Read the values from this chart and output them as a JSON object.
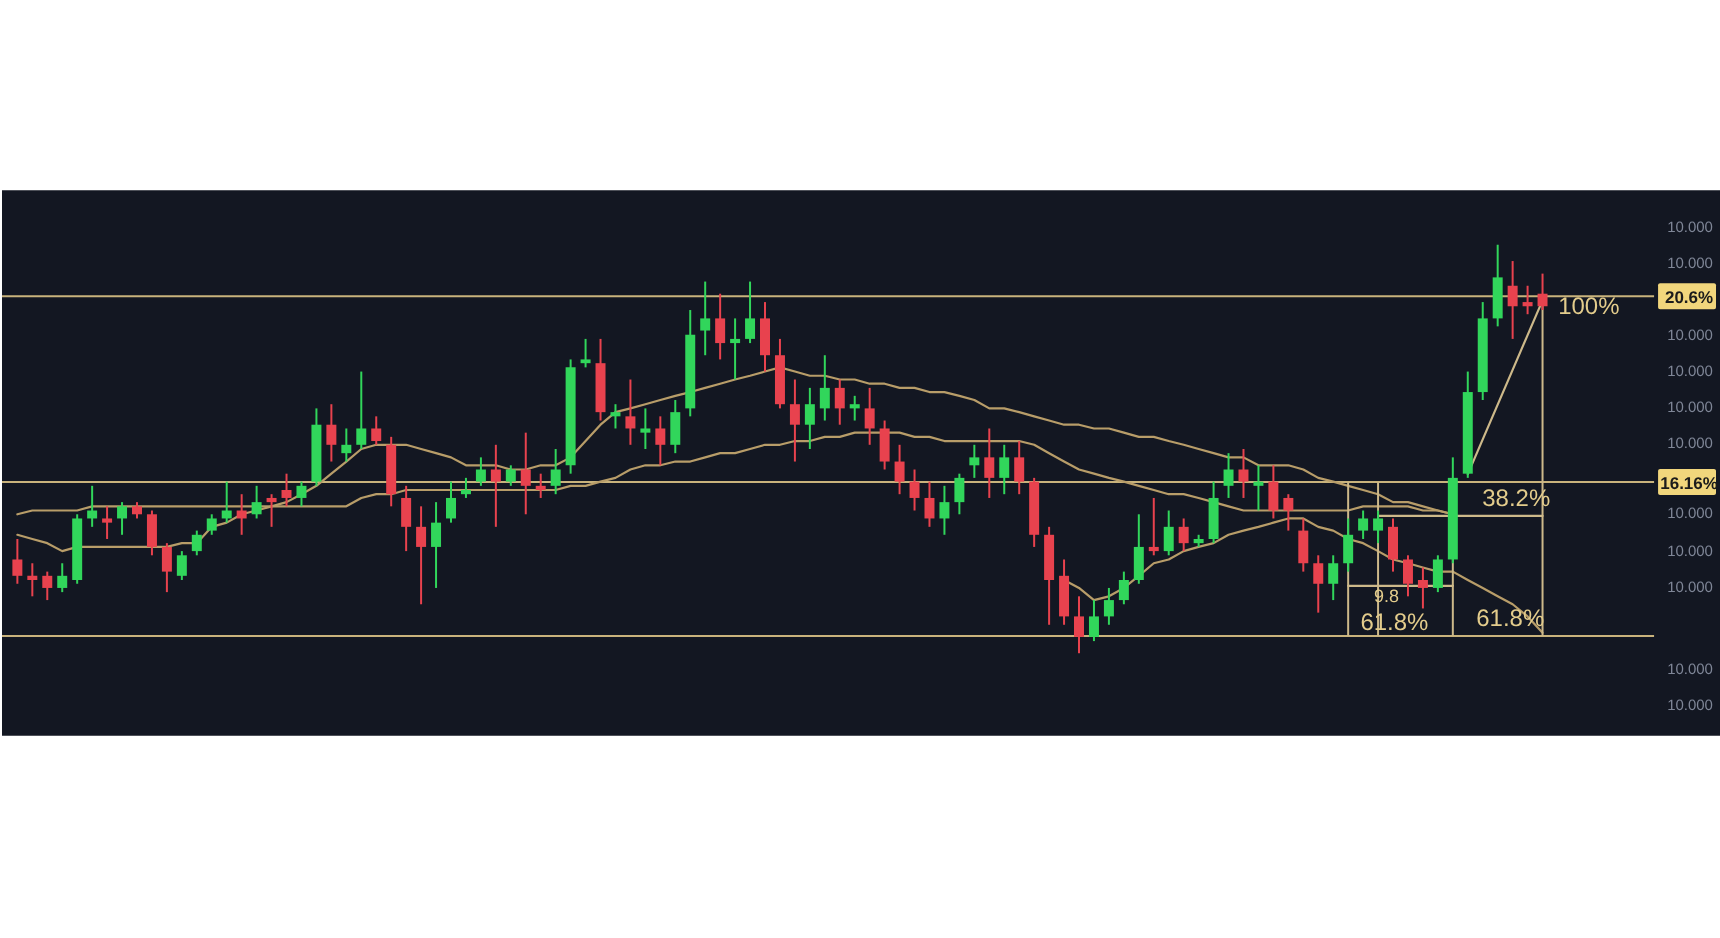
{
  "chart_data": {
    "type": "candlestick",
    "categories": [
      null,
      null,
      null,
      null,
      null,
      null,
      null,
      null,
      null,
      null,
      null,
      null,
      null,
      null,
      null,
      null,
      null,
      null,
      null,
      null,
      null,
      null,
      null,
      null,
      null,
      null,
      null,
      null,
      null,
      null,
      null,
      null,
      null,
      null,
      null,
      null,
      null,
      null,
      null,
      null,
      null,
      null,
      null,
      null,
      null,
      null,
      null,
      null,
      null,
      null,
      null,
      null,
      null,
      null,
      null,
      null,
      null,
      null,
      null,
      null,
      null,
      null,
      null,
      null,
      null,
      null,
      null,
      null,
      null,
      null,
      null,
      null,
      null,
      null,
      null,
      null,
      null,
      null,
      null,
      null,
      null,
      null,
      null,
      null,
      null,
      null,
      null,
      null,
      null,
      null,
      null,
      null,
      null,
      null,
      null,
      null,
      null,
      null,
      null,
      null,
      null,
      null,
      null
    ],
    "ohlc": [
      [
        14.31,
        14.8,
        13.73,
        13.92
      ],
      [
        13.92,
        14.22,
        13.43,
        13.82
      ],
      [
        13.92,
        14.02,
        13.34,
        13.63
      ],
      [
        13.63,
        14.22,
        13.53,
        13.92
      ],
      [
        13.82,
        15.39,
        13.73,
        15.29
      ],
      [
        15.29,
        16.07,
        15.09,
        15.48
      ],
      [
        15.29,
        15.58,
        14.8,
        15.19
      ],
      [
        15.29,
        15.68,
        14.9,
        15.58
      ],
      [
        15.58,
        15.68,
        15.29,
        15.39
      ],
      [
        15.39,
        15.48,
        14.41,
        14.61
      ],
      [
        14.61,
        14.7,
        13.53,
        14.02
      ],
      [
        13.92,
        14.51,
        13.82,
        14.41
      ],
      [
        14.51,
        15.0,
        14.41,
        14.9
      ],
      [
        15.0,
        15.39,
        14.9,
        15.29
      ],
      [
        15.29,
        16.17,
        15.19,
        15.48
      ],
      [
        15.48,
        15.87,
        14.9,
        15.29
      ],
      [
        15.39,
        16.07,
        15.29,
        15.68
      ],
      [
        15.78,
        15.87,
        15.09,
        15.68
      ],
      [
        15.97,
        16.36,
        15.58,
        15.78
      ],
      [
        15.78,
        16.17,
        15.58,
        16.07
      ],
      [
        16.17,
        17.92,
        16.07,
        17.53
      ],
      [
        17.53,
        18.02,
        16.65,
        17.05
      ],
      [
        16.85,
        17.44,
        16.65,
        17.05
      ],
      [
        17.05,
        18.8,
        16.95,
        17.44
      ],
      [
        17.44,
        17.73,
        17.05,
        17.14
      ],
      [
        17.05,
        17.24,
        15.58,
        15.87
      ],
      [
        15.78,
        16.07,
        14.51,
        15.09
      ],
      [
        15.09,
        15.58,
        13.24,
        14.61
      ],
      [
        14.61,
        15.68,
        13.63,
        15.19
      ],
      [
        15.29,
        16.17,
        15.19,
        15.78
      ],
      [
        15.87,
        16.26,
        15.78,
        15.97
      ],
      [
        16.17,
        16.75,
        16.07,
        16.46
      ],
      [
        16.46,
        17.05,
        15.09,
        16.17
      ],
      [
        16.17,
        16.56,
        16.07,
        16.46
      ],
      [
        16.46,
        17.34,
        15.39,
        16.07
      ],
      [
        16.07,
        16.36,
        15.78,
        15.97
      ],
      [
        16.07,
        16.95,
        15.87,
        16.46
      ],
      [
        16.56,
        19.09,
        16.36,
        18.9
      ],
      [
        19.0,
        19.58,
        18.9,
        19.09
      ],
      [
        19.0,
        19.58,
        17.63,
        17.83
      ],
      [
        17.73,
        18.02,
        17.44,
        17.83
      ],
      [
        17.73,
        18.61,
        17.05,
        17.44
      ],
      [
        17.34,
        17.92,
        16.95,
        17.44
      ],
      [
        17.44,
        17.73,
        16.56,
        17.05
      ],
      [
        17.05,
        18.12,
        16.85,
        17.83
      ],
      [
        17.92,
        20.27,
        17.73,
        19.68
      ],
      [
        19.78,
        20.95,
        19.19,
        20.07
      ],
      [
        20.07,
        20.66,
        19.09,
        19.48
      ],
      [
        19.48,
        20.07,
        18.61,
        19.58
      ],
      [
        19.58,
        20.95,
        19.48,
        20.07
      ],
      [
        20.07,
        20.46,
        18.8,
        19.19
      ],
      [
        19.19,
        19.58,
        17.92,
        18.02
      ],
      [
        18.02,
        18.61,
        16.65,
        17.53
      ],
      [
        17.53,
        18.41,
        16.95,
        18.02
      ],
      [
        17.92,
        19.19,
        17.63,
        18.41
      ],
      [
        18.41,
        18.61,
        17.53,
        17.92
      ],
      [
        17.92,
        18.22,
        17.63,
        18.02
      ],
      [
        17.92,
        18.41,
        17.05,
        17.44
      ],
      [
        17.44,
        17.63,
        16.46,
        16.65
      ],
      [
        16.65,
        17.05,
        15.87,
        16.17
      ],
      [
        16.17,
        16.46,
        15.48,
        15.78
      ],
      [
        15.78,
        16.17,
        15.09,
        15.29
      ],
      [
        15.29,
        16.07,
        14.9,
        15.68
      ],
      [
        15.68,
        16.36,
        15.39,
        16.26
      ],
      [
        16.56,
        17.05,
        16.26,
        16.75
      ],
      [
        16.75,
        17.44,
        15.78,
        16.26
      ],
      [
        16.26,
        17.05,
        15.87,
        16.75
      ],
      [
        16.75,
        17.14,
        15.87,
        16.17
      ],
      [
        16.17,
        16.26,
        14.61,
        14.9
      ],
      [
        14.9,
        15.09,
        12.75,
        13.82
      ],
      [
        13.92,
        14.31,
        12.75,
        12.95
      ],
      [
        12.95,
        13.43,
        12.07,
        12.46
      ],
      [
        12.46,
        13.34,
        12.36,
        12.95
      ],
      [
        12.95,
        13.63,
        12.75,
        13.34
      ],
      [
        13.34,
        14.02,
        13.24,
        13.82
      ],
      [
        13.82,
        15.39,
        13.73,
        14.61
      ],
      [
        14.61,
        15.78,
        14.41,
        14.51
      ],
      [
        14.51,
        15.48,
        14.41,
        15.09
      ],
      [
        15.09,
        15.29,
        14.51,
        14.7
      ],
      [
        14.7,
        14.9,
        14.61,
        14.8
      ],
      [
        14.8,
        16.17,
        14.7,
        15.78
      ],
      [
        16.07,
        16.85,
        15.78,
        16.46
      ],
      [
        16.46,
        16.95,
        15.78,
        16.17
      ],
      [
        16.07,
        16.56,
        15.48,
        16.17
      ],
      [
        16.17,
        16.56,
        15.29,
        15.48
      ],
      [
        15.78,
        15.87,
        15.0,
        15.48
      ],
      [
        15.0,
        15.29,
        14.02,
        14.22
      ],
      [
        14.22,
        14.41,
        13.04,
        13.73
      ],
      [
        13.73,
        14.41,
        13.34,
        14.22
      ],
      [
        14.22,
        15.29,
        14.02,
        14.9
      ],
      [
        15.0,
        15.48,
        14.8,
        15.29
      ],
      [
        15.0,
        15.48,
        14.7,
        15.29
      ],
      [
        15.09,
        15.29,
        14.02,
        14.31
      ],
      [
        14.31,
        14.41,
        13.43,
        13.73
      ],
      [
        13.82,
        14.12,
        13.14,
        13.63
      ],
      [
        13.63,
        14.41,
        13.53,
        14.31
      ],
      [
        14.31,
        16.75,
        14.22,
        16.26
      ],
      [
        16.36,
        18.8,
        16.26,
        18.31
      ],
      [
        18.31,
        20.46,
        18.12,
        20.07
      ],
      [
        20.07,
        21.83,
        19.88,
        21.05
      ],
      [
        20.85,
        21.44,
        19.58,
        20.36
      ],
      [
        20.46,
        20.85,
        20.17,
        20.36
      ],
      [
        20.66,
        21.14,
        20.27,
        20.36
      ]
    ],
    "colors": [
      "#e8424e",
      "#e8424e",
      "#e8424e",
      "#31d65b",
      "#31d65b",
      "#31d65b",
      "#e8424e",
      "#31d65b",
      "#e8424e",
      "#e8424e",
      "#e8424e",
      "#31d65b",
      "#31d65b",
      "#31d65b",
      "#31d65b",
      "#e8424e",
      "#31d65b",
      "#e8424e",
      "#e8424e",
      "#31d65b",
      "#31d65b",
      "#e8424e",
      "#31d65b",
      "#31d65b",
      "#e8424e",
      "#e8424e",
      "#e8424e",
      "#e8424e",
      "#31d65b",
      "#31d65b",
      "#31d65b",
      "#31d65b",
      "#e8424e",
      "#31d65b",
      "#e8424e",
      "#e8424e",
      "#31d65b",
      "#31d65b",
      "#31d65b",
      "#e8424e",
      "#31d65b",
      "#e8424e",
      "#31d65b",
      "#e8424e",
      "#31d65b",
      "#31d65b",
      "#31d65b",
      "#e8424e",
      "#31d65b",
      "#31d65b",
      "#e8424e",
      "#e8424e",
      "#e8424e",
      "#31d65b",
      "#31d65b",
      "#e8424e",
      "#31d65b",
      "#e8424e",
      "#e8424e",
      "#e8424e",
      "#e8424e",
      "#e8424e",
      "#31d65b",
      "#31d65b",
      "#31d65b",
      "#e8424e",
      "#31d65b",
      "#e8424e",
      "#e8424e",
      "#e8424e",
      "#e8424e",
      "#e8424e",
      "#31d65b",
      "#31d65b",
      "#31d65b",
      "#31d65b",
      "#e8424e",
      "#31d65b",
      "#e8424e",
      "#31d65b",
      "#31d65b",
      "#31d65b",
      "#e8424e",
      "#31d65b",
      "#e8424e",
      "#e8424e",
      "#e8424e",
      "#e8424e",
      "#31d65b",
      "#31d65b",
      "#31d65b",
      "#31d65b",
      "#e8424e",
      "#e8424e",
      "#e8424e",
      "#31d65b",
      "#31d65b",
      "#31d65b",
      "#31d65b",
      "#31d65b",
      "#e8424e",
      "#e8424e",
      "#e8424e"
    ],
    "series": [
      {
        "type": "line",
        "color": "#b89d69",
        "values": [
          14.9,
          14.8,
          14.7,
          14.51,
          14.61,
          14.61,
          14.61,
          14.61,
          14.61,
          14.61,
          14.61,
          14.7,
          14.7,
          15.09,
          15.19,
          15.39,
          15.48,
          15.58,
          15.68,
          15.87,
          16.07,
          16.36,
          16.65,
          16.95,
          17.05,
          17.05,
          17.05,
          16.95,
          16.85,
          16.75,
          16.56,
          16.56,
          16.56,
          16.46,
          16.46,
          16.56,
          16.56,
          16.75,
          17.14,
          17.53,
          17.83,
          17.92,
          18.02,
          18.12,
          18.22,
          18.31,
          18.41,
          18.51,
          18.61,
          18.7,
          18.8,
          18.9,
          18.8,
          18.7,
          18.7,
          18.61,
          18.61,
          18.51,
          18.51,
          18.41,
          18.41,
          18.31,
          18.31,
          18.22,
          18.12,
          17.92,
          17.92,
          17.83,
          17.73,
          17.63,
          17.53,
          17.53,
          17.44,
          17.44,
          17.34,
          17.24,
          17.24,
          17.14,
          17.05,
          16.95,
          16.85,
          16.75,
          16.75,
          16.56,
          16.56,
          16.56,
          16.46,
          16.26,
          16.17,
          16.07,
          15.97,
          15.87,
          15.68,
          15.68,
          15.58,
          15.48,
          15.39,
          null,
          null,
          null,
          null,
          null,
          null
        ]
      },
      {
        "type": "line",
        "color": "#b89d69",
        "values": [
          15.39,
          15.48,
          15.48,
          15.48,
          15.48,
          15.58,
          15.58,
          15.58,
          15.58,
          15.58,
          15.58,
          15.58,
          15.58,
          15.58,
          15.58,
          15.58,
          15.58,
          15.58,
          15.58,
          15.58,
          15.58,
          15.58,
          15.58,
          15.78,
          15.87,
          15.87,
          15.97,
          15.97,
          15.97,
          15.97,
          15.97,
          15.97,
          15.97,
          15.97,
          15.97,
          15.97,
          15.97,
          16.07,
          16.07,
          16.17,
          16.26,
          16.46,
          16.56,
          16.56,
          16.65,
          16.65,
          16.75,
          16.85,
          16.85,
          16.95,
          17.05,
          17.05,
          17.14,
          17.14,
          17.24,
          17.24,
          17.34,
          17.34,
          17.34,
          17.34,
          17.24,
          17.24,
          17.14,
          17.14,
          17.14,
          17.14,
          17.14,
          17.14,
          17.05,
          16.85,
          16.65,
          16.46,
          16.36,
          16.26,
          16.17,
          16.07,
          15.97,
          15.87,
          15.87,
          15.78,
          15.68,
          15.58,
          15.48,
          15.48,
          15.48,
          15.48,
          15.48,
          15.48,
          15.48,
          15.48,
          15.58,
          15.58,
          15.58,
          15.58,
          15.48,
          15.48,
          15.39,
          null,
          null,
          null,
          null,
          null,
          null
        ]
      },
      {
        "type": "line",
        "color": "#b89d69",
        "values": [
          null,
          null,
          null,
          null,
          null,
          null,
          null,
          null,
          null,
          null,
          null,
          null,
          null,
          null,
          null,
          null,
          null,
          null,
          null,
          null,
          null,
          null,
          null,
          null,
          null,
          null,
          null,
          null,
          null,
          null,
          null,
          null,
          null,
          null,
          null,
          null,
          null,
          null,
          null,
          null,
          null,
          null,
          null,
          null,
          null,
          null,
          null,
          null,
          null,
          null,
          null,
          null,
          null,
          null,
          null,
          null,
          null,
          null,
          null,
          null,
          null,
          null,
          null,
          null,
          null,
          null,
          null,
          null,
          null,
          null,
          13.82,
          13.63,
          13.34,
          13.43,
          13.63,
          13.92,
          14.22,
          14.31,
          14.51,
          14.61,
          14.7,
          14.9,
          15.0,
          15.09,
          15.19,
          15.29,
          15.29,
          15.09,
          15.0,
          14.8,
          14.7,
          14.51,
          14.31,
          14.22,
          14.12,
          14.02,
          14.02,
          13.82,
          13.63,
          13.43,
          13.24,
          12.95,
          12.56
        ]
      },
      {
        "type": "line",
        "color": "#cdb98a",
        "values": [
          null,
          null,
          null,
          null,
          null,
          null,
          null,
          null,
          null,
          null,
          null,
          null,
          null,
          null,
          null,
          null,
          null,
          null,
          null,
          null,
          null,
          null,
          null,
          null,
          null,
          null,
          null,
          null,
          null,
          null,
          null,
          null,
          null,
          null,
          null,
          null,
          null,
          null,
          null,
          null,
          null,
          null,
          null,
          null,
          null,
          null,
          null,
          null,
          null,
          null,
          null,
          null,
          null,
          null,
          null,
          null,
          null,
          null,
          null,
          null,
          null,
          null,
          null,
          null,
          null,
          null,
          null,
          null,
          null,
          null,
          null,
          null,
          null,
          null,
          null,
          null,
          null,
          null,
          null,
          null,
          null,
          null,
          null,
          null,
          null,
          null,
          null,
          null,
          null,
          13.68,
          13.68,
          13.68,
          13.68,
          13.68,
          13.68,
          13.68,
          13.68,
          null,
          null,
          null,
          null,
          null,
          null
        ]
      },
      {
        "type": "line",
        "color": "#cdb98a",
        "values": [
          null,
          null,
          null,
          null,
          null,
          null,
          null,
          null,
          null,
          null,
          null,
          null,
          null,
          null,
          null,
          null,
          null,
          null,
          null,
          null,
          null,
          null,
          null,
          null,
          null,
          null,
          null,
          null,
          null,
          null,
          null,
          null,
          null,
          null,
          null,
          null,
          null,
          null,
          null,
          null,
          null,
          null,
          null,
          null,
          null,
          null,
          null,
          null,
          null,
          null,
          null,
          null,
          null,
          null,
          null,
          null,
          null,
          null,
          null,
          null,
          null,
          null,
          null,
          null,
          null,
          null,
          null,
          null,
          null,
          null,
          null,
          null,
          null,
          null,
          null,
          null,
          null,
          null,
          null,
          null,
          null,
          null,
          null,
          null,
          null,
          null,
          null,
          null,
          null,
          null,
          null,
          15.35,
          15.35,
          15.35,
          15.35,
          15.35,
          15.35,
          15.35,
          15.35,
          15.35,
          15.35,
          15.35,
          15.35
        ]
      },
      {
        "type": "line",
        "color": "#cdb98a",
        "values": [
          null,
          null,
          null,
          null,
          null,
          null,
          null,
          null,
          null,
          null,
          null,
          null,
          null,
          null,
          null,
          null,
          null,
          null,
          null,
          null,
          null,
          null,
          null,
          null,
          null,
          null,
          null,
          null,
          null,
          null,
          null,
          null,
          null,
          null,
          null,
          null,
          null,
          null,
          null,
          null,
          null,
          null,
          null,
          null,
          null,
          null,
          null,
          null,
          null,
          null,
          null,
          null,
          null,
          null,
          null,
          null,
          null,
          null,
          null,
          null,
          null,
          null,
          null,
          null,
          null,
          null,
          null,
          null,
          null,
          null,
          null,
          null,
          null,
          null,
          null,
          null,
          null,
          null,
          null,
          null,
          null,
          null,
          null,
          null,
          null,
          null,
          null,
          null,
          null,
          null,
          null,
          null,
          null,
          null,
          null,
          null,
          null,
          16.35,
          17.18,
          18.01,
          18.84,
          19.67,
          20.5
        ]
      }
    ],
    "ylim": [
      10.1,
      23.13
    ],
    "yticks": [
      {
        "value": 20.6,
        "label": "20.6%"
      },
      {
        "value": 16.16,
        "label": "16.16%"
      }
    ],
    "tick_labels": "y",
    "ref_lines": [
      {
        "axis": "y",
        "value": 20.6,
        "color": "#c9b37c"
      },
      {
        "axis": "y",
        "value": 16.16,
        "color": "#c9b37c"
      },
      {
        "axis": "y",
        "value": 12.48,
        "color": "#c9b37c"
      }
    ],
    "annotations": [
      {
        "text": "100%",
        "y": 20.6
      },
      {
        "text": "38.2%",
        "y": 16.16
      },
      {
        "text": "61.8%",
        "y": 12.48
      },
      {
        "text": "61.8%",
        "y": 12.48
      },
      {
        "text": "9.8",
        "y": 13.68
      },
      "10.000",
      "10.000",
      "10.000",
      "10.000",
      "10.000",
      "10.000",
      "10.000",
      "10.000",
      "10.000",
      "10.000",
      "10.000"
    ]
  }
}
